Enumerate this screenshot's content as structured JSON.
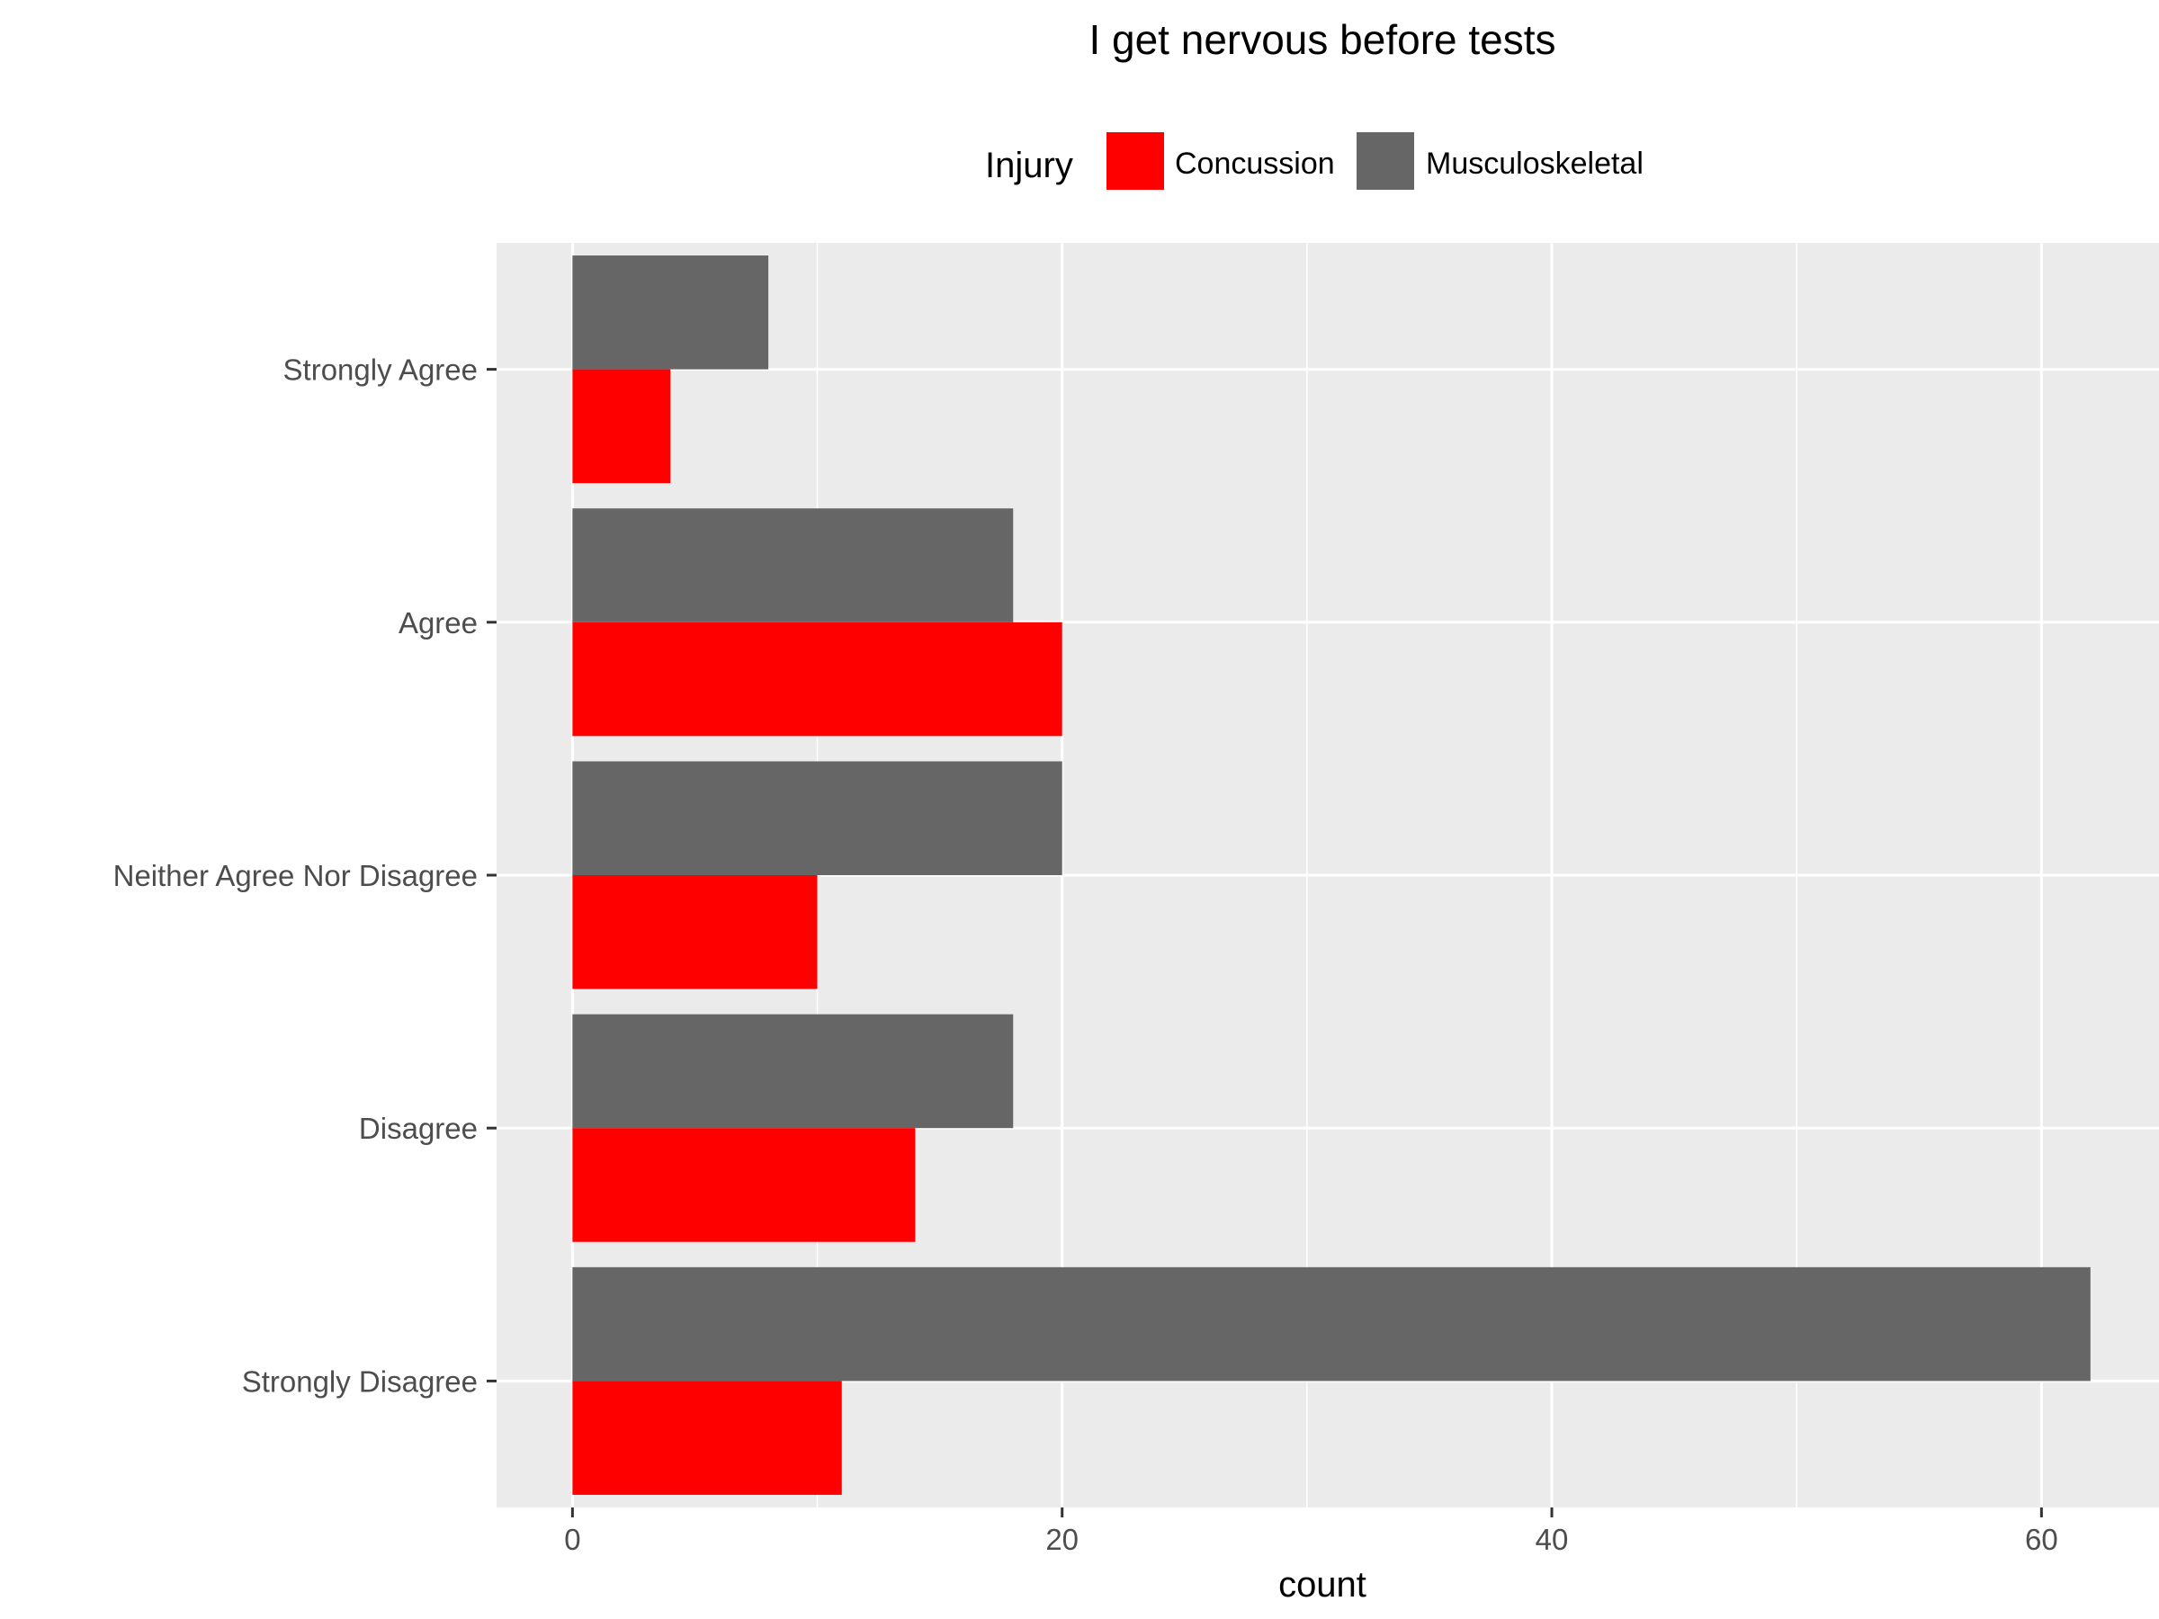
{
  "chart_data": {
    "type": "bar",
    "orientation": "horizontal",
    "title": "I get nervous before tests",
    "xlabel": "count",
    "ylabel": "",
    "legend": {
      "title": "Injury",
      "position": "top",
      "entries": [
        "Concussion",
        "Musculoskeletal"
      ]
    },
    "categories": [
      "Strongly Agree",
      "Agree",
      "Neither Agree Nor Disagree",
      "Disagree",
      "Strongly Disagree"
    ],
    "series": [
      {
        "name": "Concussion",
        "color": "#ff0000",
        "values": [
          4,
          20,
          10,
          14,
          11
        ]
      },
      {
        "name": "Musculoskeletal",
        "color": "#666666",
        "values": [
          8,
          18,
          20,
          18,
          62
        ]
      }
    ],
    "xlim": [
      -3.1,
      64.8
    ],
    "xticks": [
      0,
      20,
      40,
      60
    ],
    "xminor": [
      10,
      30,
      50
    ],
    "grid": true,
    "panel_color": "#ebebeb",
    "grid_color": "#ffffff"
  }
}
